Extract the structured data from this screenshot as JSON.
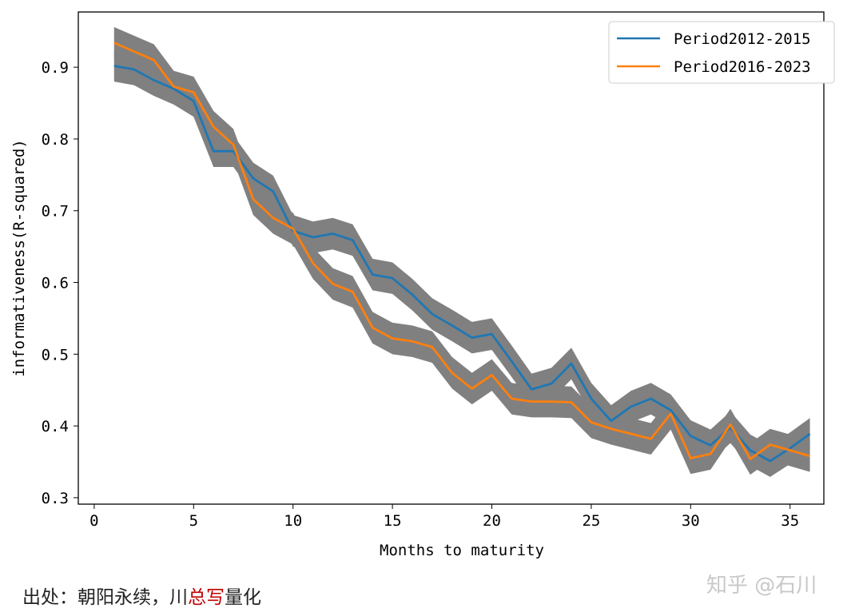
{
  "chart_data": {
    "type": "line",
    "title": "",
    "xlabel": "Months to maturity",
    "ylabel": "informativeness(R-squared)",
    "xlim": [
      -0.8,
      36.7
    ],
    "ylim": [
      0.291,
      0.977
    ],
    "xticks": [
      0,
      5,
      10,
      15,
      20,
      25,
      30,
      35
    ],
    "yticks": [
      0.3,
      0.4,
      0.5,
      0.6,
      0.7,
      0.8,
      0.9
    ],
    "ytick_labels": [
      "0.3",
      "0.4",
      "0.5",
      "0.6",
      "0.7",
      "0.8",
      "0.9"
    ],
    "legend_position": "top-right",
    "grid": false,
    "x": [
      1,
      2,
      3,
      4,
      5,
      6,
      7,
      8,
      9,
      10,
      11,
      12,
      13,
      14,
      15,
      16,
      17,
      18,
      19,
      20,
      21,
      22,
      23,
      24,
      25,
      26,
      27,
      28,
      29,
      30,
      31,
      32,
      33,
      34,
      35,
      36
    ],
    "series": [
      {
        "name": "Period2012-2015",
        "color": "#1f77b4",
        "band_color": "#808080",
        "band_halfwidth": 0.022,
        "values": [
          0.902,
          0.897,
          0.882,
          0.87,
          0.853,
          0.783,
          0.783,
          0.745,
          0.727,
          0.672,
          0.663,
          0.668,
          0.659,
          0.611,
          0.606,
          0.583,
          0.556,
          0.54,
          0.523,
          0.528,
          0.49,
          0.451,
          0.459,
          0.487,
          0.438,
          0.407,
          0.427,
          0.438,
          0.422,
          0.386,
          0.373,
          0.398,
          0.366,
          0.351,
          0.369,
          0.389
        ]
      },
      {
        "name": "Period2016-2023",
        "color": "#ff7f0e",
        "band_color": "#808080",
        "band_halfwidth": 0.022,
        "values": [
          0.934,
          0.922,
          0.91,
          0.873,
          0.865,
          0.817,
          0.792,
          0.716,
          0.69,
          0.675,
          0.627,
          0.598,
          0.587,
          0.537,
          0.522,
          0.518,
          0.51,
          0.474,
          0.452,
          0.471,
          0.438,
          0.434,
          0.434,
          0.433,
          0.405,
          0.396,
          0.389,
          0.382,
          0.417,
          0.355,
          0.361,
          0.402,
          0.354,
          0.374,
          0.366,
          0.358
        ]
      }
    ]
  },
  "footer": {
    "prefix": "出处：朝阳永续，川",
    "highlight": "总写",
    "suffix": "量化"
  },
  "watermark": "知乎 @石川"
}
